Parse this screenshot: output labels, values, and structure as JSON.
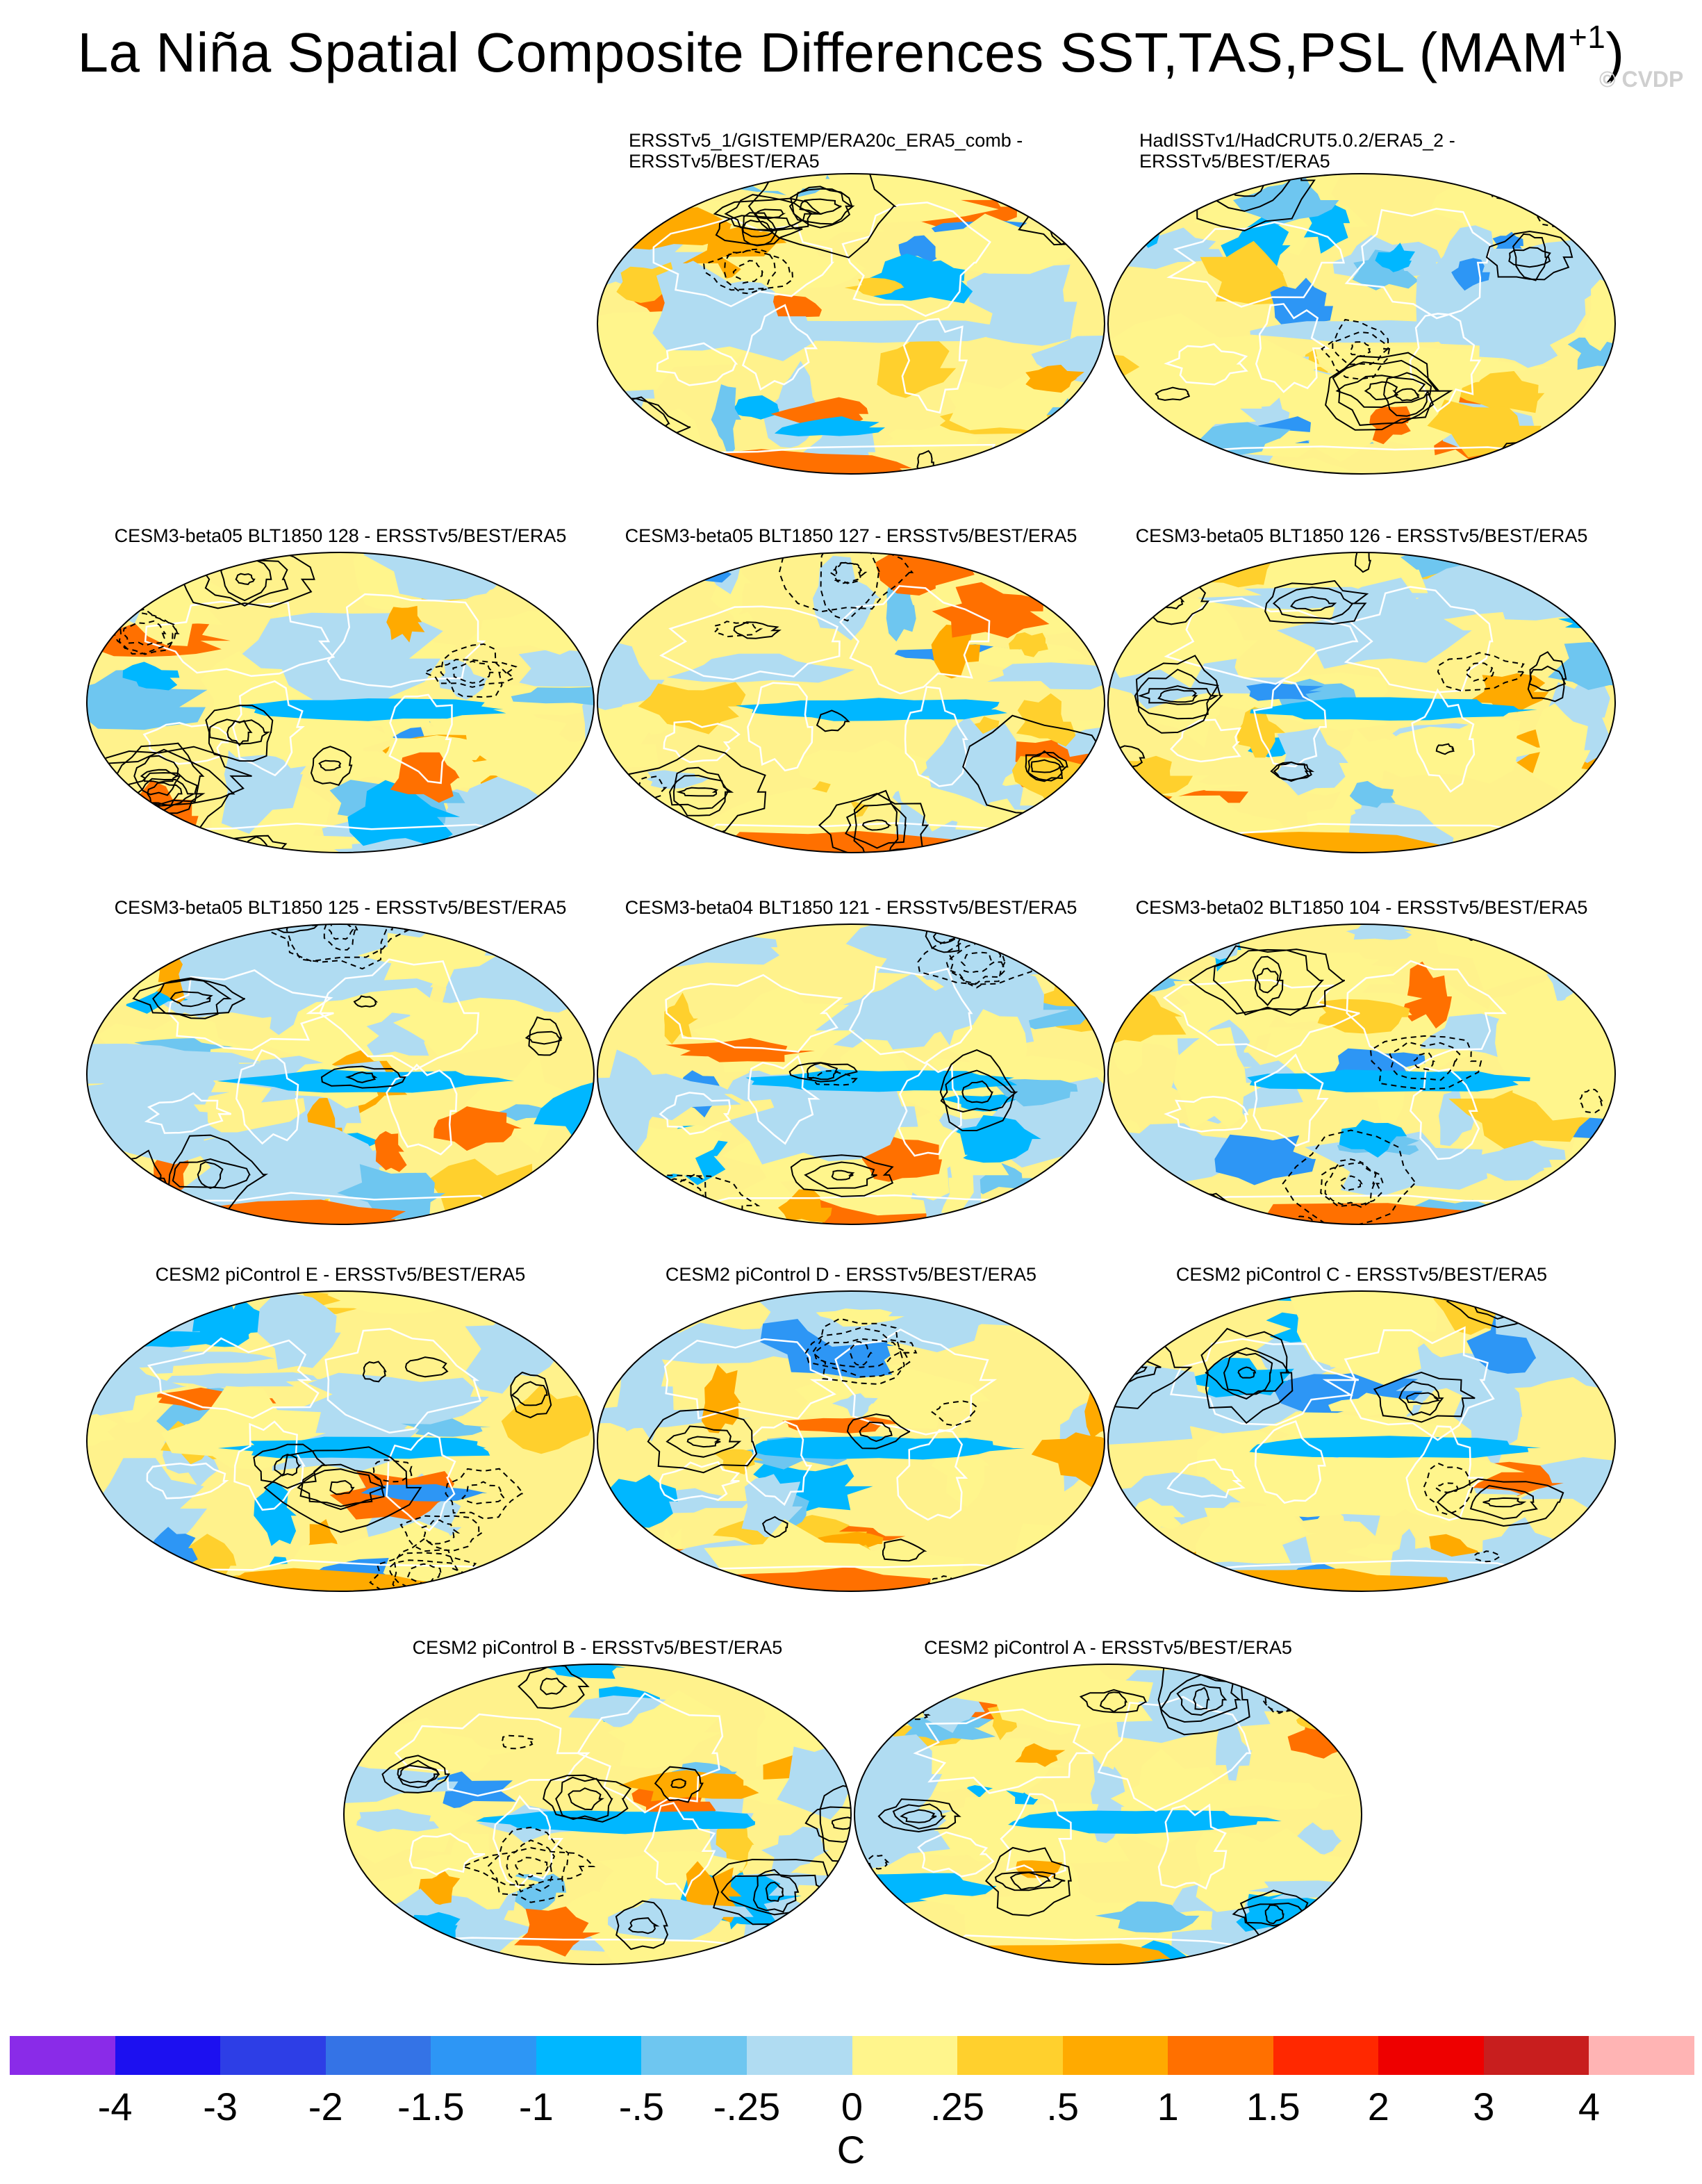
{
  "title": {
    "text": "La Niña Spatial Composite Differences SST,TAS,PSL (MAM",
    "superscript": "+1",
    "suffix": ")"
  },
  "watermark": "© CVDP",
  "palette": {
    "land_outline": "#ffffff",
    "contour": "#000000",
    "ocean_cool": "#9fd4f2",
    "ocean_warm": "#fff28c"
  },
  "panels": [
    {
      "label": "ERSSTv5_1/GISTEMP/ERA20c_ERA5_comb -",
      "label2": "ERSSTv5/BEST/ERA5",
      "pattern": 1
    },
    {
      "label": "HadISSTv1/HadCRUT5.0.2/ERA5_2 -",
      "label2": "ERSSTv5/BEST/ERA5",
      "pattern": 2
    },
    {
      "label": "CESM3-beta05 BLT1850 128 - ERSSTv5/BEST/ERA5",
      "label2": "",
      "pattern": 3
    },
    {
      "label": "CESM3-beta05 BLT1850 127 - ERSSTv5/BEST/ERA5",
      "label2": "",
      "pattern": 4
    },
    {
      "label": "CESM3-beta05 BLT1850 126 - ERSSTv5/BEST/ERA5",
      "label2": "",
      "pattern": 5
    },
    {
      "label": "CESM3-beta05 BLT1850 125 - ERSSTv5/BEST/ERA5",
      "label2": "",
      "pattern": 6
    },
    {
      "label": "CESM3-beta04 BLT1850 121 - ERSSTv5/BEST/ERA5",
      "label2": "",
      "pattern": 7
    },
    {
      "label": "CESM3-beta02 BLT1850 104 - ERSSTv5/BEST/ERA5",
      "label2": "",
      "pattern": 8
    },
    {
      "label": "CESM2 piControl E - ERSSTv5/BEST/ERA5",
      "label2": "",
      "pattern": 9
    },
    {
      "label": "CESM2 piControl D - ERSSTv5/BEST/ERA5",
      "label2": "",
      "pattern": 10
    },
    {
      "label": "CESM2 piControl C - ERSSTv5/BEST/ERA5",
      "label2": "",
      "pattern": 11
    },
    {
      "label": "CESM2 piControl B - ERSSTv5/BEST/ERA5",
      "label2": "",
      "pattern": 12
    },
    {
      "label": "CESM2 piControl A - ERSSTv5/BEST/ERA5",
      "label2": "",
      "pattern": 13
    }
  ],
  "colorbar": {
    "colors": [
      "#8a2be8",
      "#1c10f0",
      "#2d3ee6",
      "#3473e6",
      "#2d96f5",
      "#00b7ff",
      "#6ec6f0",
      "#b0dcf2",
      "#fff58c",
      "#ffd02d",
      "#ffaa00",
      "#ff7000",
      "#ff2800",
      "#ee0000",
      "#c81e1e",
      "#ffb4b4"
    ],
    "labels": [
      "-4",
      "-3",
      "-2",
      "-1.5",
      "-1",
      "-.5",
      "-.25",
      "0",
      ".25",
      ".5",
      "1",
      "1.5",
      "2",
      "3",
      "4"
    ],
    "units": "C"
  }
}
